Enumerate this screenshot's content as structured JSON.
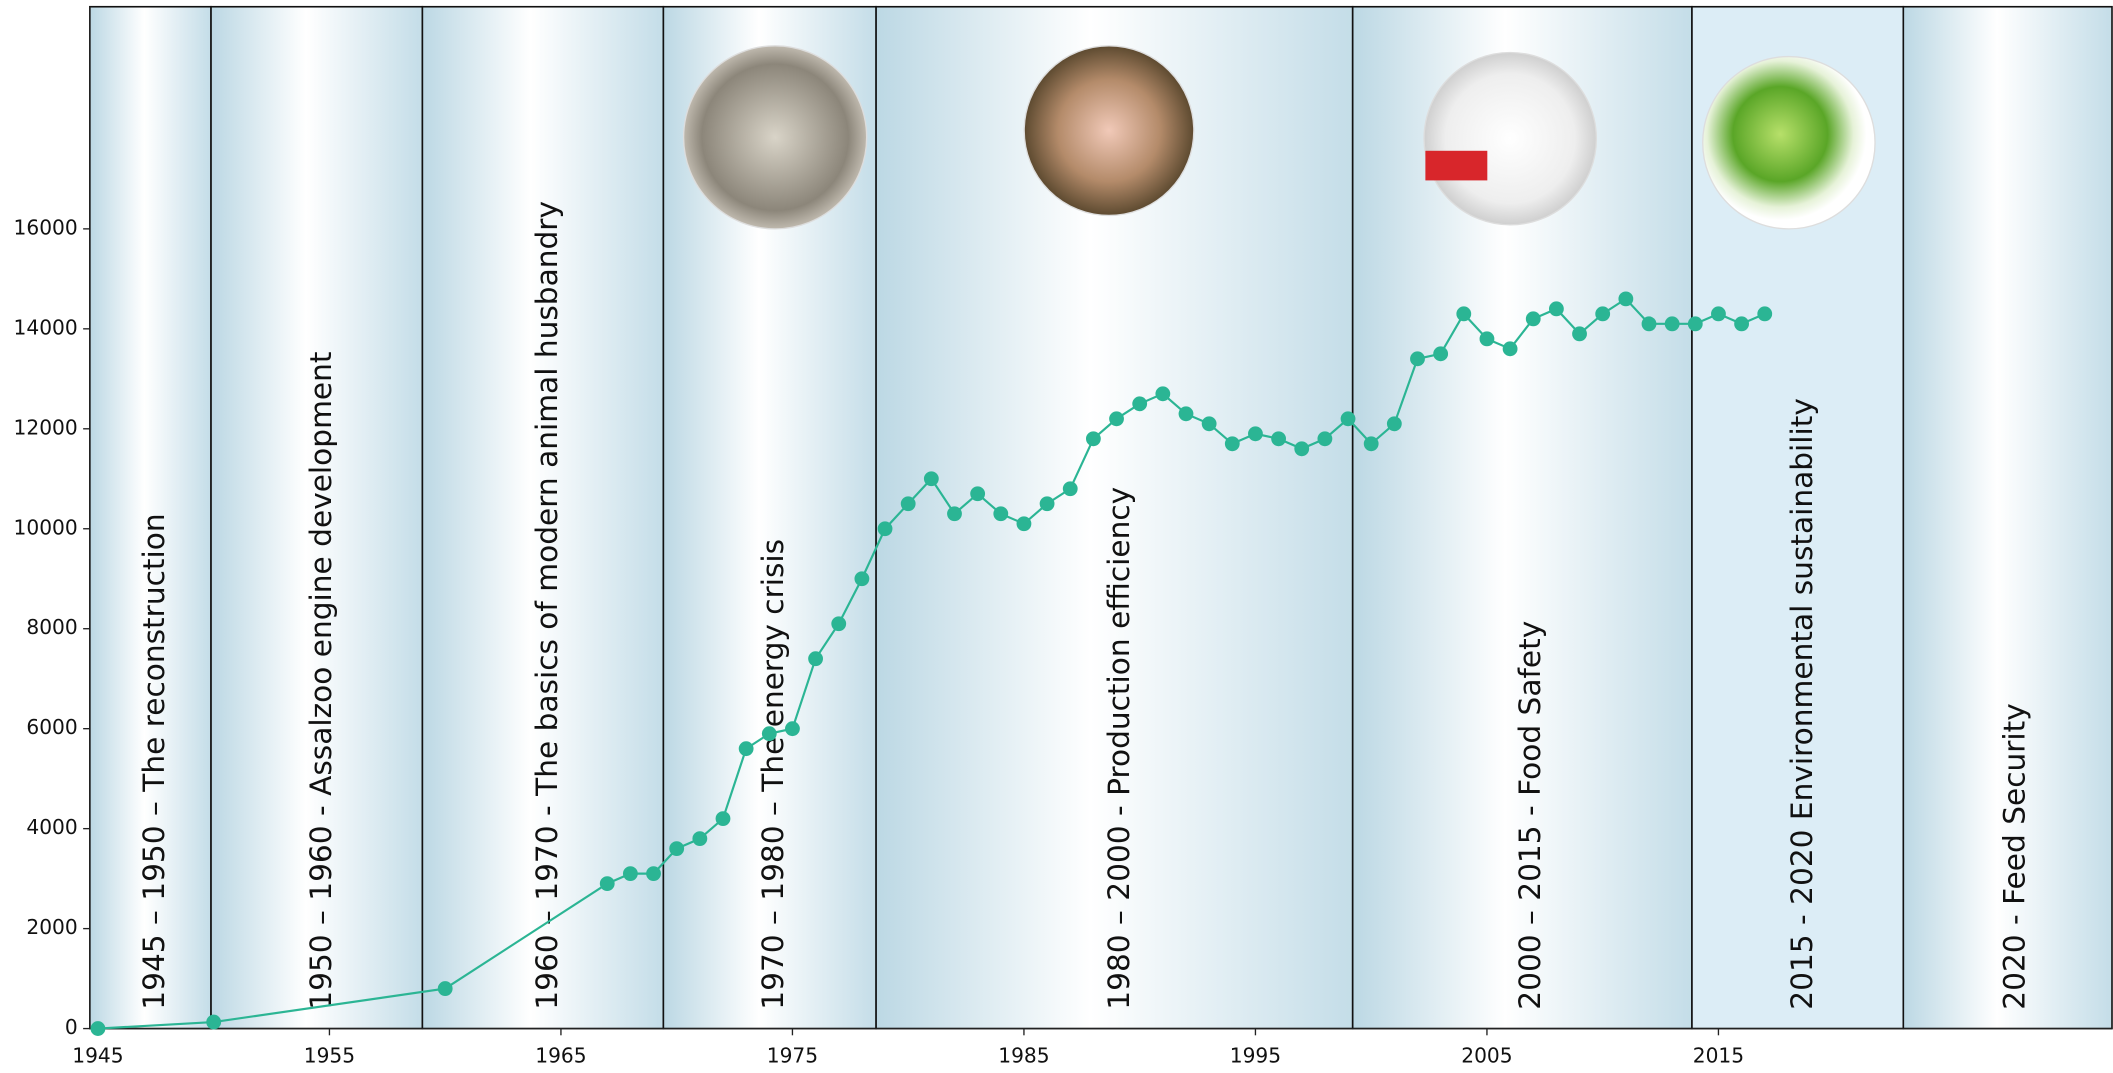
{
  "chart_data": {
    "type": "line",
    "x": [
      1945,
      1950,
      1960,
      1967,
      1968,
      1969,
      1970,
      1971,
      1972,
      1973,
      1974,
      1975,
      1976,
      1977,
      1978,
      1979,
      1980,
      1981,
      1982,
      1983,
      1984,
      1985,
      1986,
      1987,
      1988,
      1989,
      1990,
      1991,
      1992,
      1993,
      1994,
      1995,
      1996,
      1997,
      1998,
      1999,
      2000,
      2001,
      2002,
      2003,
      2004,
      2005,
      2006,
      2007,
      2008,
      2009,
      2010,
      2011,
      2012,
      2013,
      2014,
      2015,
      2016,
      2017
    ],
    "values": [
      0,
      130,
      800,
      2900,
      3100,
      3100,
      3600,
      3800,
      4200,
      5600,
      5900,
      6000,
      7400,
      8100,
      9000,
      10000,
      10500,
      11000,
      10300,
      10700,
      10300,
      10100,
      10500,
      10800,
      11800,
      12200,
      12500,
      12700,
      12300,
      12100,
      11700,
      11900,
      11800,
      11600,
      11800,
      12200,
      11700,
      12100,
      13400,
      13500,
      14300,
      13800,
      13600,
      14200,
      14400,
      13900,
      14300,
      14600,
      14100,
      14100,
      14100,
      14300,
      14100,
      14300
    ],
    "color": "#2bb594",
    "xlim": [
      1945,
      2032
    ],
    "ylim": [
      0,
      20000
    ],
    "xticks": [
      1945,
      1955,
      1965,
      1975,
      1985,
      1995,
      2005,
      2015
    ],
    "yticks": [
      0,
      2000,
      4000,
      6000,
      8000,
      10000,
      12000,
      14000,
      16000
    ],
    "annotations": [
      "1945 – 1950 – The reconstruction",
      "1950 – 1960 - Assalzoo engine development",
      "1960 – 1970 - The basics of modern animal husbandry",
      "1970 – 1980 – The energy crisis",
      "1980 – 2000 - Production efficiency",
      "2000 – 2015 - Food Safety",
      "2015 - 2020 Environmental sustainability",
      "2020 -  Feed Security"
    ]
  }
}
